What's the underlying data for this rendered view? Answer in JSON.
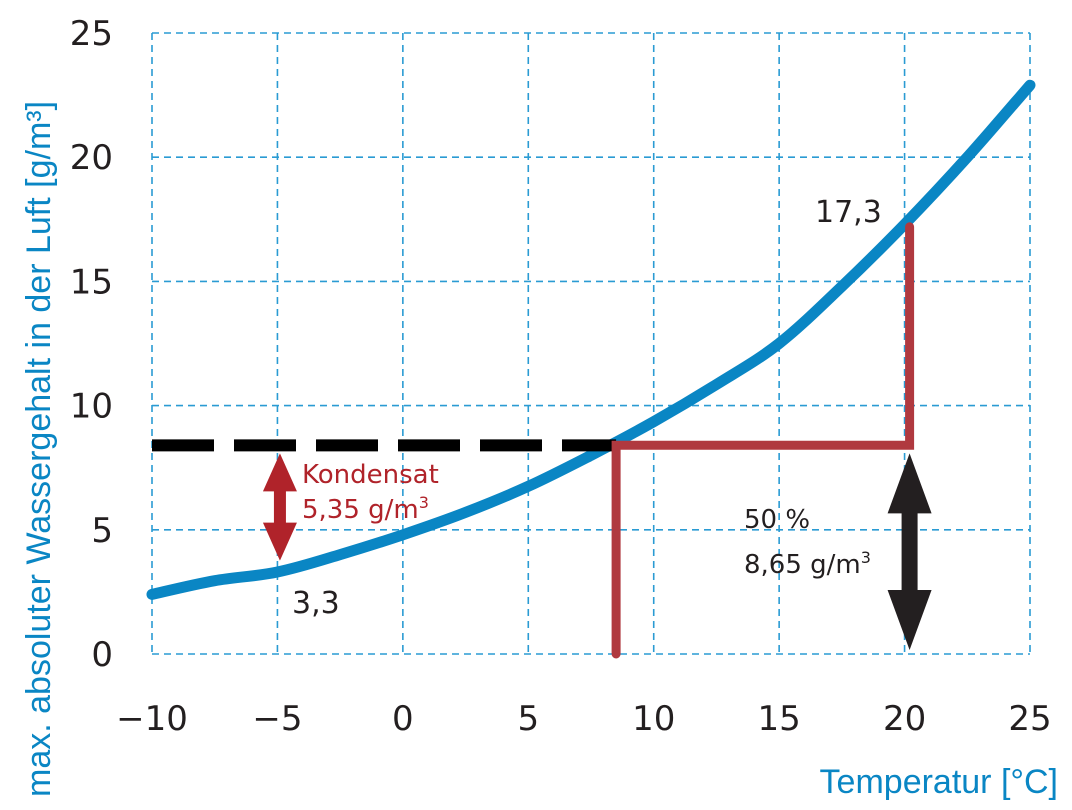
{
  "chart_data": {
    "type": "line",
    "xlabel": "Temperatur [°C]",
    "ylabel": "max. absoluter Wassergehalt in der Luft [g/m³]",
    "xlim": [
      -10,
      25
    ],
    "ylim": [
      0,
      25
    ],
    "x_ticks": [
      "−10",
      "−5",
      "0",
      "5",
      "10",
      "15",
      "20",
      "25"
    ],
    "y_ticks": [
      "0",
      "5",
      "10",
      "15",
      "20",
      "25"
    ],
    "grid": true,
    "series": [
      {
        "color": "#0a86c4",
        "x": [
          -10,
          -7.5,
          -5,
          -2.5,
          0,
          2.5,
          5,
          7.5,
          10,
          12.5,
          15,
          17.5,
          20,
          22.5,
          25
        ],
        "y": [
          2.4,
          2.95,
          3.3,
          4.0,
          4.8,
          5.7,
          6.75,
          8.0,
          9.35,
          10.85,
          12.5,
          14.8,
          17.3,
          20.0,
          22.9
        ]
      }
    ],
    "annotations": {
      "dew_level": {
        "y": 8.4,
        "x_from": -10,
        "x_to": 8.5,
        "color": "#000000",
        "style": "dashed"
      },
      "red_path": {
        "color": "#b0393f",
        "points": [
          [
            8.5,
            0
          ],
          [
            8.5,
            8.4
          ],
          [
            20.2,
            8.4
          ],
          [
            20.2,
            17.2
          ]
        ]
      },
      "condensate_arrow": {
        "x": -4.9,
        "y_from": 8.4,
        "y_to": 3.6,
        "color": "#b0232a"
      },
      "humidity_arrow": {
        "x": 20.2,
        "y_from": 8.4,
        "y_to": 0,
        "color": "#231f20"
      },
      "labels": {
        "condensate_title": "Kondensat",
        "condensate_value": "5,35 g/m",
        "condensate_sup": "3",
        "point_low": "3,3",
        "point_high": "17,3",
        "humidity_percent": "50 %",
        "humidity_value": "8,65 g/m",
        "humidity_sup": "3"
      }
    }
  }
}
